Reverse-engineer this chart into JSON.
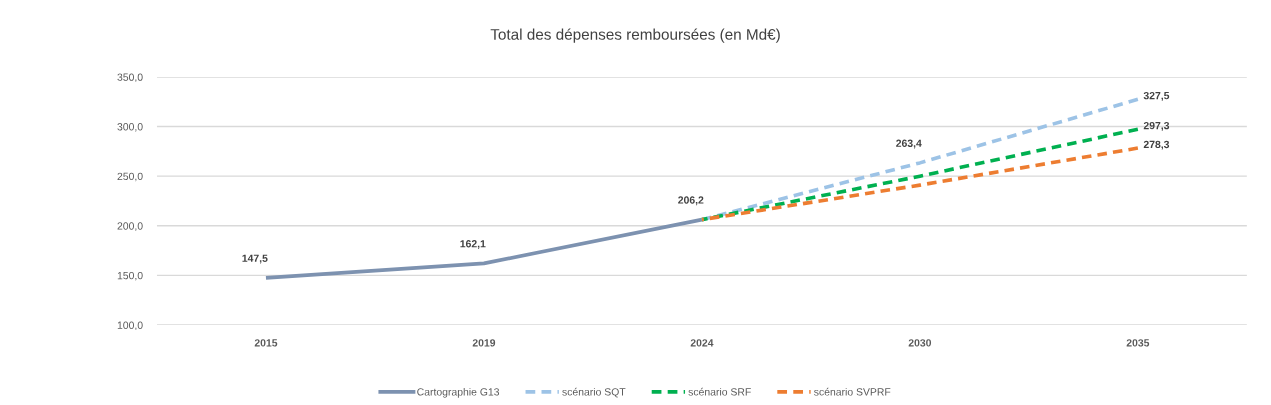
{
  "chart_data": {
    "type": "line",
    "title": "Total des dépenses remboursées (en Md€)",
    "categories": [
      "2015",
      "2019",
      "2024",
      "2030",
      "2035"
    ],
    "series": [
      {
        "name": "Cartographie G13",
        "color": "#7d92b0",
        "line_style": "solid",
        "values": [
          147.5,
          162.1,
          206.2,
          null,
          null
        ],
        "value_labels": [
          "147,5",
          "162,1",
          "206,2",
          null,
          null
        ]
      },
      {
        "name": "scénario SQT",
        "color": "#9dc3e6",
        "line_style": "dashed",
        "values": [
          null,
          null,
          206.2,
          263.4,
          327.5
        ],
        "value_labels": [
          null,
          null,
          null,
          "263,4",
          "327,5"
        ]
      },
      {
        "name": "scénario SRF",
        "color": "#00b050",
        "line_style": "dashed",
        "values": [
          null,
          null,
          206.2,
          250,
          297.3
        ],
        "value_labels": [
          null,
          null,
          null,
          null,
          "297,3"
        ]
      },
      {
        "name": "scénario SVPRF",
        "color": "#ed7d31",
        "line_style": "dashed",
        "values": [
          null,
          null,
          206.2,
          241,
          278.3
        ],
        "value_labels": [
          null,
          null,
          null,
          null,
          "278,3"
        ]
      }
    ],
    "ylim": [
      100,
      350
    ],
    "yticks": [
      {
        "value": 100,
        "label": "100,0"
      },
      {
        "value": 150,
        "label": "150,0"
      },
      {
        "value": 200,
        "label": "200,0"
      },
      {
        "value": 250,
        "label": "250,0"
      },
      {
        "value": 300,
        "label": "300,0"
      },
      {
        "value": 350,
        "label": "350,0"
      }
    ],
    "grid": "y",
    "legend": "bottom"
  }
}
